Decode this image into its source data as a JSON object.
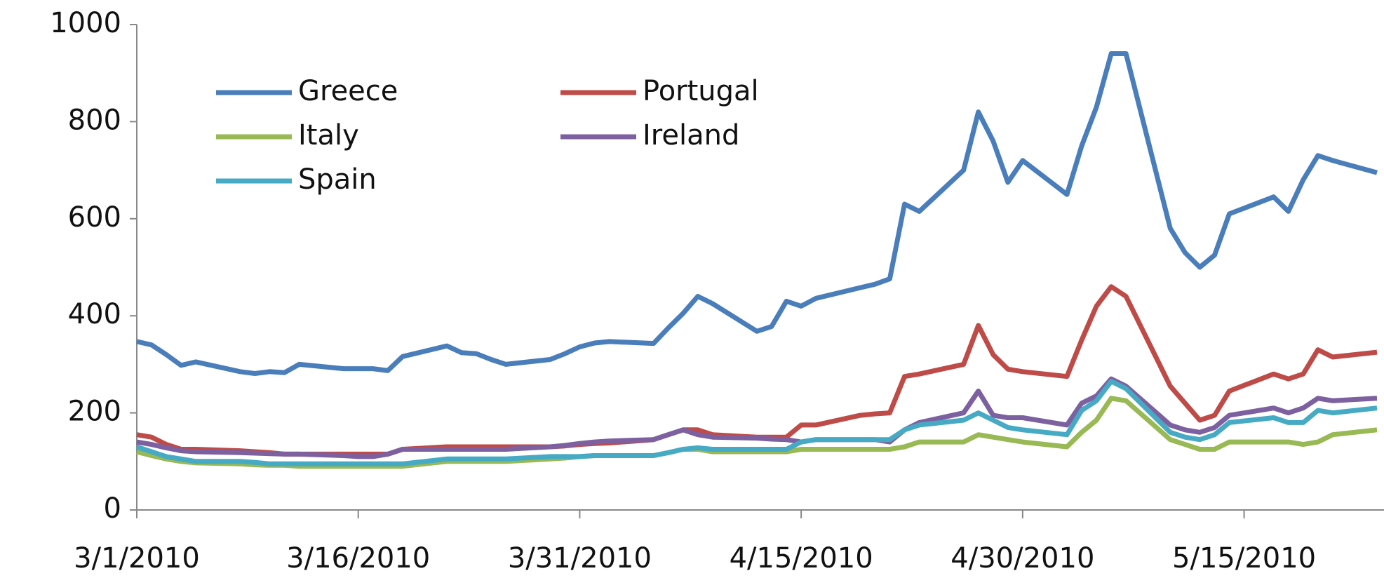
{
  "chart_data": {
    "type": "line",
    "x": [
      "2010-03-01",
      "2010-03-02",
      "2010-03-03",
      "2010-03-04",
      "2010-03-05",
      "2010-03-08",
      "2010-03-09",
      "2010-03-10",
      "2010-03-11",
      "2010-03-12",
      "2010-03-15",
      "2010-03-16",
      "2010-03-17",
      "2010-03-18",
      "2010-03-19",
      "2010-03-22",
      "2010-03-23",
      "2010-03-24",
      "2010-03-25",
      "2010-03-26",
      "2010-03-29",
      "2010-03-30",
      "2010-03-31",
      "2010-04-01",
      "2010-04-02",
      "2010-04-05",
      "2010-04-06",
      "2010-04-07",
      "2010-04-08",
      "2010-04-09",
      "2010-04-12",
      "2010-04-13",
      "2010-04-14",
      "2010-04-15",
      "2010-04-16",
      "2010-04-19",
      "2010-04-20",
      "2010-04-21",
      "2010-04-22",
      "2010-04-23",
      "2010-04-26",
      "2010-04-27",
      "2010-04-28",
      "2010-04-29",
      "2010-04-30",
      "2010-05-03",
      "2010-05-04",
      "2010-05-05",
      "2010-05-06",
      "2010-05-07",
      "2010-05-10",
      "2010-05-11",
      "2010-05-12",
      "2010-05-13",
      "2010-05-14",
      "2010-05-17",
      "2010-05-18",
      "2010-05-19",
      "2010-05-20",
      "2010-05-21",
      "2010-05-24"
    ],
    "series": [
      {
        "name": "Greece",
        "color": "#4a7ebb",
        "values": [
          347,
          340,
          320,
          298,
          305,
          285,
          281,
          285,
          283,
          300,
          291,
          291,
          291,
          287,
          316,
          338,
          324,
          322,
          310,
          300,
          310,
          322,
          336,
          344,
          347,
          343,
          375,
          405,
          440,
          425,
          368,
          378,
          430,
          420,
          436,
          458,
          465,
          476,
          630,
          615,
          700,
          820,
          760,
          675,
          720,
          650,
          750,
          830,
          940,
          940,
          580,
          530,
          500,
          525,
          610,
          645,
          615,
          680,
          730,
          720,
          695
        ]
      },
      {
        "name": "Portugal",
        "color": "#be4b48",
        "values": [
          155,
          150,
          135,
          125,
          125,
          122,
          120,
          118,
          115,
          115,
          115,
          115,
          115,
          115,
          125,
          130,
          130,
          130,
          130,
          130,
          130,
          132,
          135,
          137,
          138,
          145,
          155,
          165,
          165,
          155,
          150,
          150,
          150,
          175,
          175,
          195,
          198,
          200,
          275,
          280,
          300,
          380,
          320,
          290,
          285,
          275,
          350,
          420,
          460,
          440,
          255,
          220,
          185,
          195,
          245,
          280,
          270,
          280,
          330,
          315,
          325
        ]
      },
      {
        "name": "Italy",
        "color": "#98b954",
        "values": [
          120,
          112,
          105,
          100,
          97,
          95,
          93,
          92,
          92,
          90,
          90,
          90,
          90,
          90,
          90,
          100,
          100,
          100,
          100,
          100,
          105,
          107,
          110,
          112,
          112,
          112,
          118,
          125,
          125,
          120,
          120,
          120,
          120,
          125,
          125,
          125,
          125,
          125,
          130,
          140,
          140,
          155,
          150,
          145,
          140,
          130,
          160,
          185,
          230,
          225,
          145,
          135,
          125,
          125,
          140,
          140,
          140,
          135,
          140,
          155,
          165
        ]
      },
      {
        "name": "Ireland",
        "color": "#7d60a0",
        "values": [
          140,
          135,
          128,
          122,
          120,
          118,
          117,
          116,
          115,
          115,
          112,
          110,
          110,
          115,
          125,
          125,
          125,
          125,
          125,
          125,
          130,
          133,
          137,
          140,
          142,
          145,
          155,
          165,
          155,
          150,
          148,
          146,
          145,
          140,
          145,
          145,
          145,
          140,
          165,
          180,
          200,
          245,
          195,
          190,
          190,
          175,
          220,
          235,
          270,
          255,
          175,
          165,
          160,
          170,
          195,
          210,
          200,
          210,
          230,
          225,
          230
        ]
      },
      {
        "name": "Spain",
        "color": "#46aac5",
        "values": [
          130,
          120,
          110,
          105,
          100,
          100,
          98,
          95,
          95,
          95,
          95,
          95,
          95,
          95,
          95,
          105,
          105,
          105,
          105,
          105,
          110,
          110,
          110,
          112,
          112,
          112,
          118,
          125,
          128,
          125,
          125,
          125,
          125,
          140,
          145,
          145,
          145,
          145,
          165,
          175,
          185,
          200,
          185,
          170,
          165,
          155,
          205,
          225,
          265,
          250,
          160,
          150,
          145,
          155,
          180,
          190,
          180,
          180,
          205,
          200,
          210
        ]
      }
    ],
    "xlim": [
      "2010-03-01",
      "2010-05-24"
    ],
    "xticks": [
      {
        "value": "2010-03-01",
        "label": "3/1/2010"
      },
      {
        "value": "2010-03-16",
        "label": "3/16/2010"
      },
      {
        "value": "2010-03-31",
        "label": "3/31/2010"
      },
      {
        "value": "2010-04-15",
        "label": "4/15/2010"
      },
      {
        "value": "2010-04-30",
        "label": "4/30/2010"
      },
      {
        "value": "2010-05-15",
        "label": "5/15/2010"
      }
    ],
    "ylim": [
      0,
      1000
    ],
    "yticks": [
      0,
      200,
      400,
      600,
      800,
      1000
    ],
    "grid": false
  }
}
